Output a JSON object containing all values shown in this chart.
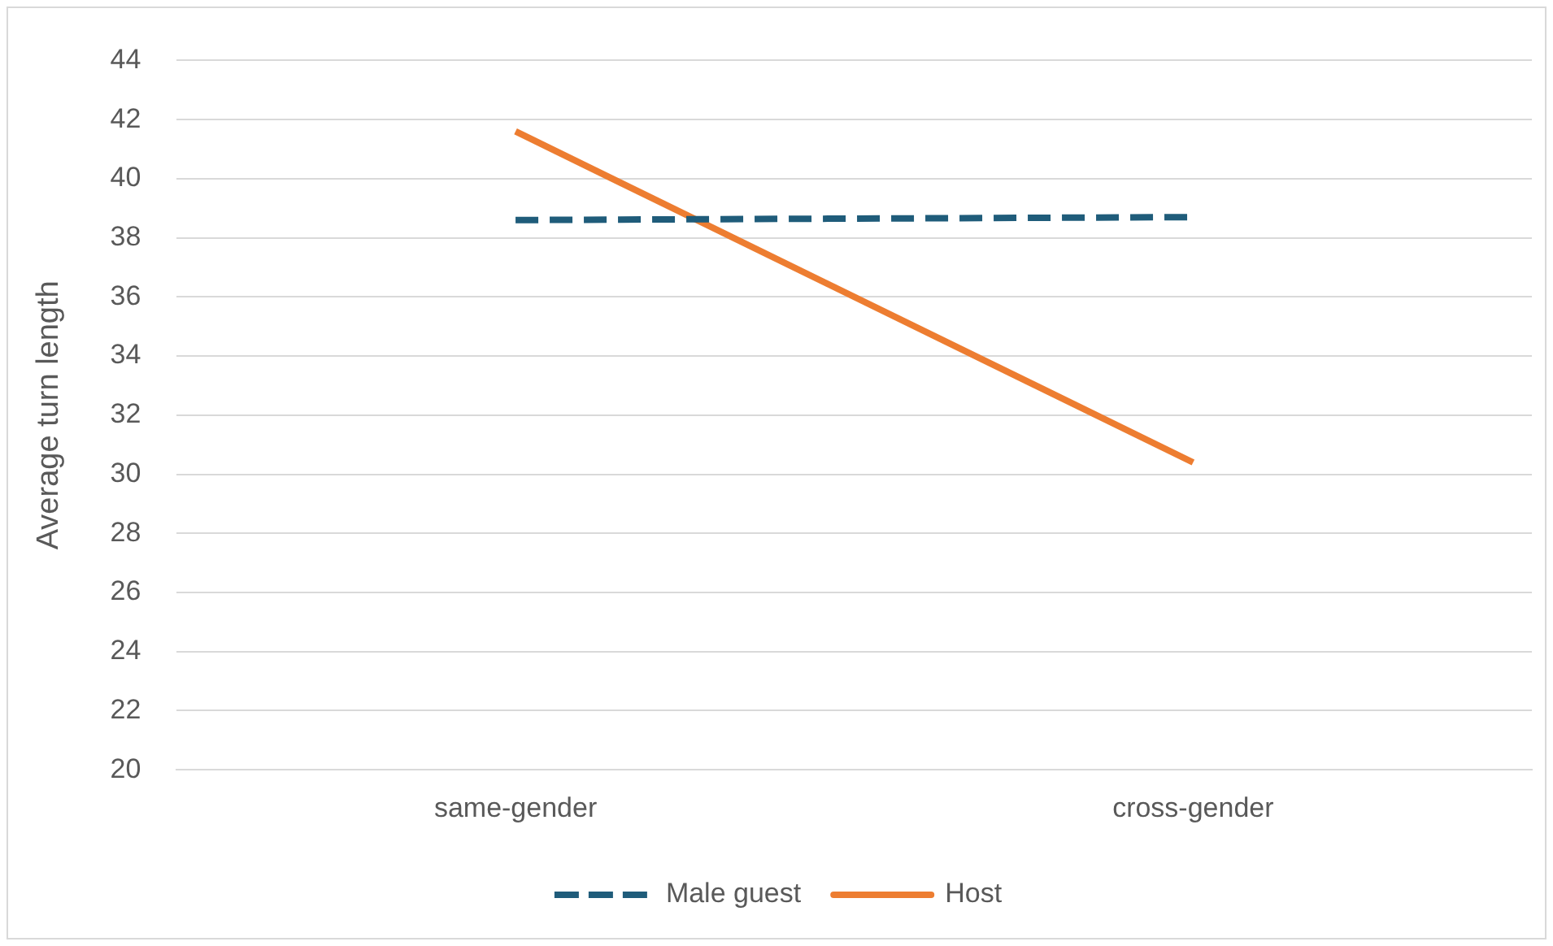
{
  "chart_data": {
    "type": "line",
    "ylabel": "Average turn length",
    "categories": [
      "same-gender",
      "cross-gender"
    ],
    "series": [
      {
        "name": "Male guest",
        "color": "#1f5c7a",
        "values": [
          38.6,
          38.7
        ],
        "line_style": "dashed"
      },
      {
        "name": "Host",
        "color": "#ed7d31",
        "values": [
          41.6,
          30.4
        ],
        "line_style": "solid"
      }
    ],
    "ylim": [
      20,
      44
    ],
    "yticks": [
      20,
      22,
      24,
      26,
      28,
      30,
      32,
      34,
      36,
      38,
      40,
      42,
      44
    ],
    "grid": "y",
    "legend": "bottom",
    "marker": "none"
  }
}
